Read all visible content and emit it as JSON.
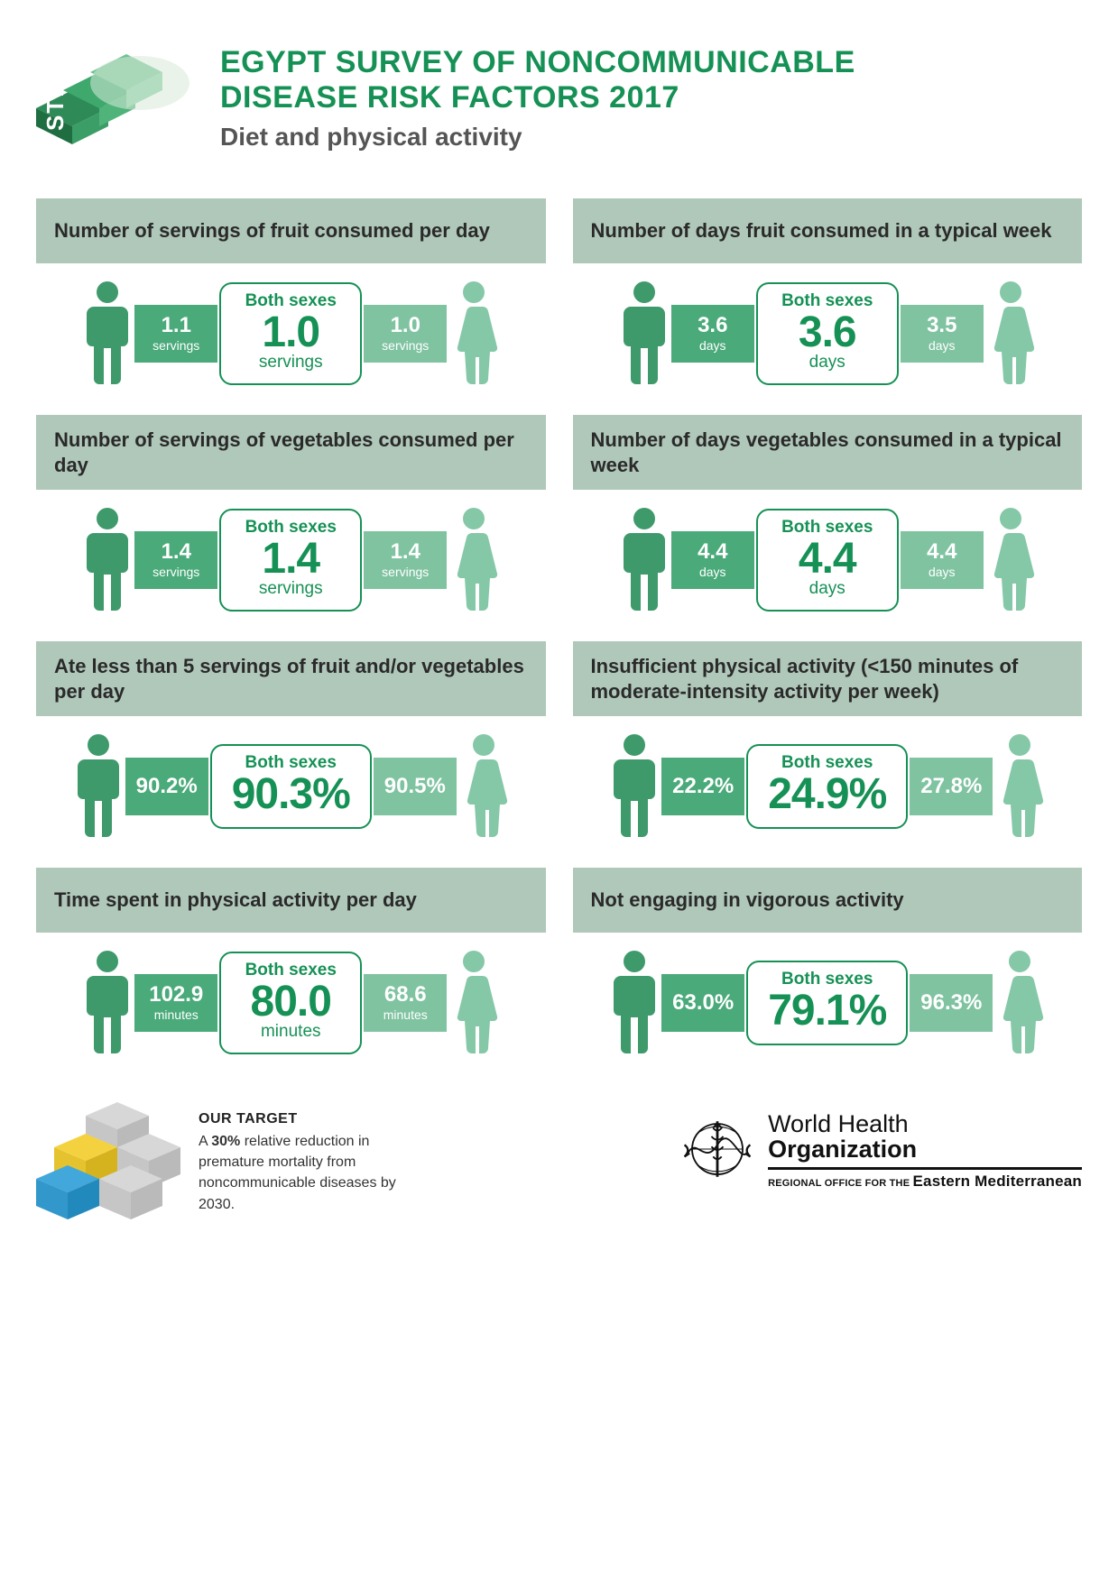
{
  "colors": {
    "primary_green": "#169155",
    "header_bg": "#b0c8ba",
    "male_bar": "#4aaa7a",
    "female_bar": "#7fc3a1",
    "male_icon": "#3f9a6b",
    "female_icon": "#85c8a7",
    "page_bg": "#ffffff",
    "heading_text": "#2a2a2a",
    "body_text": "#333333"
  },
  "header": {
    "title_line1": "EGYPT SURVEY OF NONCOMMUNICABLE",
    "title_line2": "DISEASE RISK FACTORS 2017",
    "subtitle": "Diet and physical activity",
    "logo_label": "STEPS"
  },
  "panels": [
    {
      "title": "Number of servings of fruit consumed per day",
      "both_label": "Both sexes",
      "male_value": "1.1",
      "male_unit": "servings",
      "both_value": "1.0",
      "both_unit": "servings",
      "female_value": "1.0",
      "female_unit": "servings"
    },
    {
      "title": "Number of days fruit consumed in a typical week",
      "both_label": "Both sexes",
      "male_value": "3.6",
      "male_unit": "days",
      "both_value": "3.6",
      "both_unit": "days",
      "female_value": "3.5",
      "female_unit": "days"
    },
    {
      "title": "Number of servings of vegetables consumed per day",
      "both_label": "Both sexes",
      "male_value": "1.4",
      "male_unit": "servings",
      "both_value": "1.4",
      "both_unit": "servings",
      "female_value": "1.4",
      "female_unit": "servings"
    },
    {
      "title": "Number of days vegetables consumed in a typical week",
      "both_label": "Both sexes",
      "male_value": "4.4",
      "male_unit": "days",
      "both_value": "4.4",
      "both_unit": "days",
      "female_value": "4.4",
      "female_unit": "days"
    },
    {
      "title": "Ate less than 5 servings of fruit and/or vegetables per day",
      "both_label": "Both sexes",
      "male_value": "90.2%",
      "male_unit": "",
      "both_value": "90.3%",
      "both_unit": "",
      "female_value": "90.5%",
      "female_unit": ""
    },
    {
      "title": "Insufficient physical activity (<150 minutes of  moderate-intensity activity per week)",
      "both_label": "Both sexes",
      "male_value": "22.2%",
      "male_unit": "",
      "both_value": "24.9%",
      "both_unit": "",
      "female_value": "27.8%",
      "female_unit": ""
    },
    {
      "title": "Time spent in physical activity per day",
      "both_label": "Both sexes",
      "male_value": "102.9",
      "male_unit": "minutes",
      "both_value": "80.0",
      "both_unit": "minutes",
      "female_value": "68.6",
      "female_unit": "minutes"
    },
    {
      "title": "Not engaging in vigorous activity",
      "both_label": "Both sexes",
      "male_value": "63.0%",
      "male_unit": "",
      "both_value": "79.1%",
      "both_unit": "",
      "female_value": "96.3%",
      "female_unit": ""
    }
  ],
  "footer": {
    "target_title": "OUR TARGET",
    "target_text_pre": "A ",
    "target_text_bold": "30%",
    "target_text_post": " relative reduction in premature mortality from noncommunicable diseases by 2030.",
    "who_line1": "World Health",
    "who_line2": "Organization",
    "who_region_pre": "REGIONAL OFFICE FOR THE ",
    "who_region_em": "Eastern Mediterranean"
  }
}
